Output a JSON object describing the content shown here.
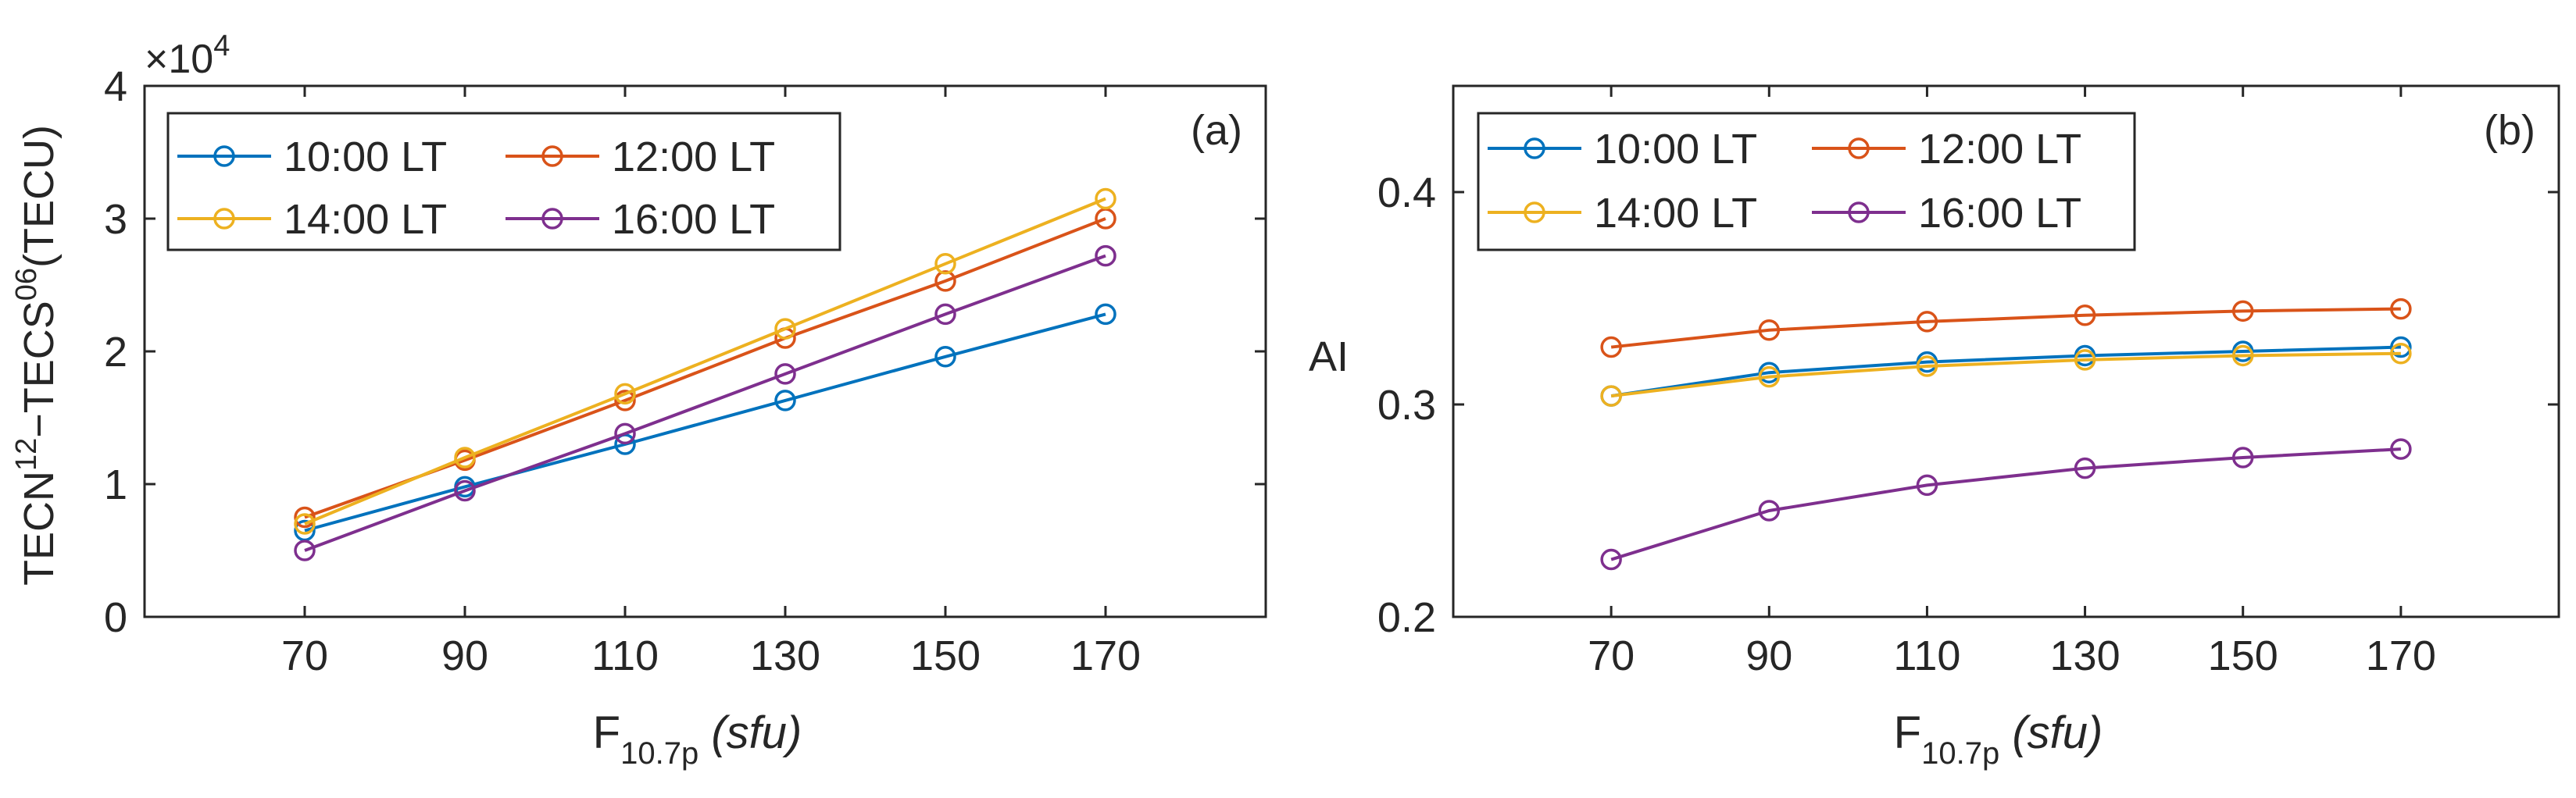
{
  "chart_data": [
    {
      "type": "line",
      "panel_label": "(a)",
      "multiplier": {
        "base": "×10",
        "exponent": "4"
      },
      "ylabel": {
        "p1": "TECN",
        "sup1": "12",
        "p2": "−TECS",
        "sup2": "06",
        "p3": "(TECU)"
      },
      "xlabel": {
        "main": "F",
        "sub": "10.7p",
        "unit": "(sfu)"
      },
      "xlim": [
        50,
        190
      ],
      "ylim": [
        0,
        4
      ],
      "xticks": [
        70,
        90,
        110,
        130,
        150,
        170
      ],
      "xtick_labels": [
        "70",
        "90",
        "110",
        "130",
        "150",
        "170"
      ],
      "yticks": [
        0,
        1,
        2,
        3,
        4
      ],
      "ytick_labels": [
        "0",
        "1",
        "2",
        "3",
        "4"
      ],
      "x": [
        70,
        90,
        110,
        130,
        150,
        170
      ],
      "legend_position": "top-left",
      "series": [
        {
          "name": "10:00 LT",
          "color": "#0072BD",
          "values": [
            0.65,
            0.98,
            1.3,
            1.63,
            1.96,
            2.28
          ]
        },
        {
          "name": "12:00 LT",
          "color": "#D95319",
          "values": [
            0.75,
            1.18,
            1.63,
            2.1,
            2.53,
            3.0
          ]
        },
        {
          "name": "14:00 LT",
          "color": "#EDB120",
          "values": [
            0.7,
            1.2,
            1.68,
            2.17,
            2.66,
            3.15
          ]
        },
        {
          "name": "16:00 LT",
          "color": "#7E2F8E",
          "values": [
            0.5,
            0.95,
            1.38,
            1.83,
            2.28,
            2.72
          ]
        }
      ]
    },
    {
      "type": "line",
      "panel_label": "(b)",
      "ylabel": {
        "main": "AI"
      },
      "xlabel": {
        "main": "F",
        "sub": "10.7p",
        "unit": "(sfu)"
      },
      "xlim": [
        50,
        190
      ],
      "ylim": [
        0.2,
        0.45
      ],
      "xticks": [
        70,
        90,
        110,
        130,
        150,
        170
      ],
      "xtick_labels": [
        "70",
        "90",
        "110",
        "130",
        "150",
        "170"
      ],
      "yticks": [
        0.2,
        0.3,
        0.4
      ],
      "ytick_labels": [
        "0.2",
        "0.3",
        "0.4"
      ],
      "x": [
        70,
        90,
        110,
        130,
        150,
        170
      ],
      "legend_position": "top-left",
      "series": [
        {
          "name": "10:00 LT",
          "color": "#0072BD",
          "values": [
            0.304,
            0.315,
            0.32,
            0.323,
            0.325,
            0.327
          ]
        },
        {
          "name": "12:00 LT",
          "color": "#D95319",
          "values": [
            0.327,
            0.335,
            0.339,
            0.342,
            0.344,
            0.345
          ]
        },
        {
          "name": "14:00 LT",
          "color": "#EDB120",
          "values": [
            0.304,
            0.313,
            0.318,
            0.321,
            0.323,
            0.324
          ]
        },
        {
          "name": "16:00 LT",
          "color": "#7E2F8E",
          "values": [
            0.227,
            0.25,
            0.262,
            0.27,
            0.275,
            0.279
          ]
        }
      ]
    }
  ]
}
